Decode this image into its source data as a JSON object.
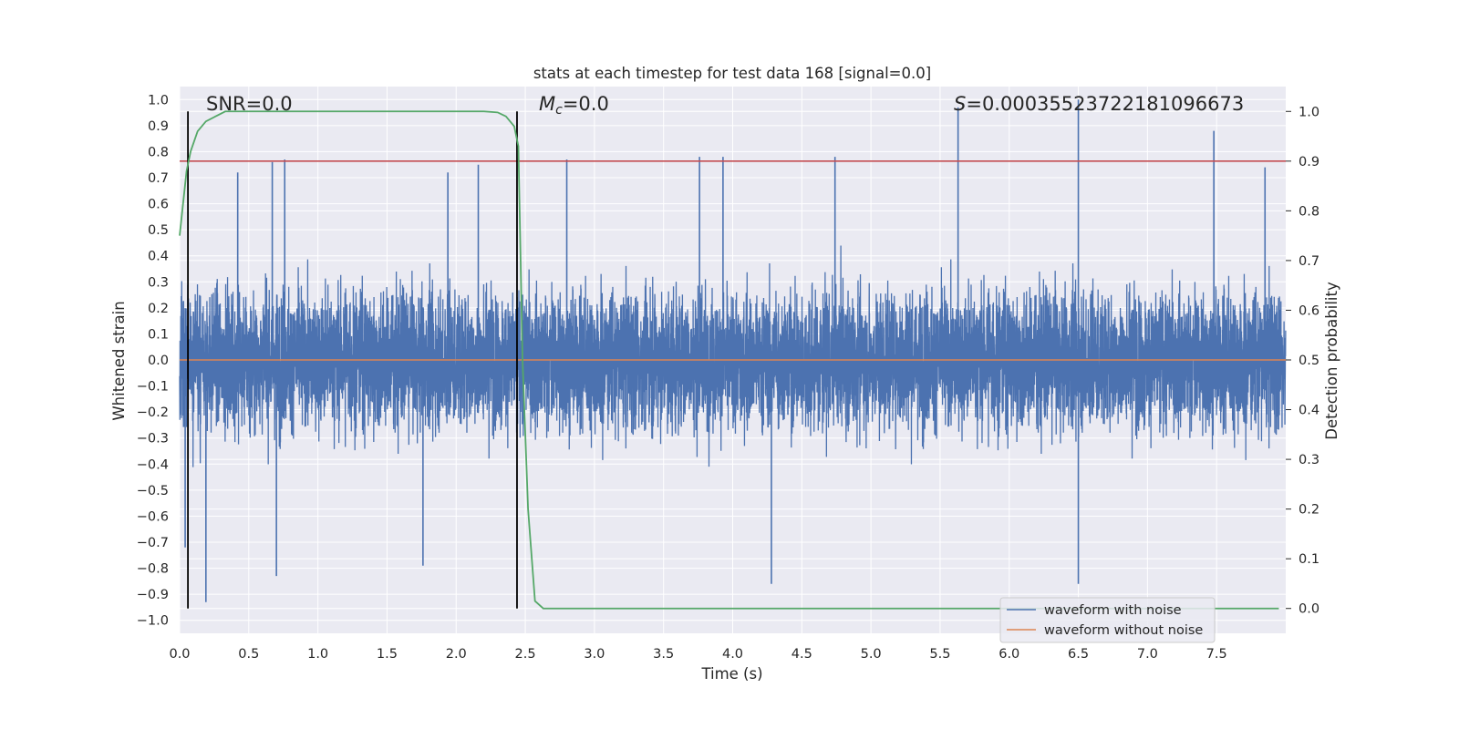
{
  "chart_data": {
    "type": "line",
    "title": "stats at each timestep for test data 168 [signal=0.0]",
    "xlabel": "Time (s)",
    "ylabel": "Whitened strain",
    "ylabel_right": "Detection probability",
    "xlim": [
      0.0,
      8.0
    ],
    "ylim": [
      -1.05,
      1.05
    ],
    "ylim_right": [
      -0.05,
      1.05
    ],
    "grid": true,
    "legend_position": "lower right",
    "x_ticks": [
      "0.0",
      "0.5",
      "1.0",
      "1.5",
      "2.0",
      "2.5",
      "3.0",
      "3.5",
      "4.0",
      "4.5",
      "5.0",
      "5.5",
      "6.0",
      "6.5",
      "7.0",
      "7.5"
    ],
    "y_ticks": [
      "1.0",
      "0.9",
      "0.8",
      "0.7",
      "0.6",
      "0.5",
      "0.4",
      "0.3",
      "0.2",
      "0.1",
      "0.0",
      "−0.1",
      "−0.2",
      "−0.3",
      "−0.4",
      "−0.5",
      "−0.6",
      "−0.7",
      "−0.8",
      "−0.9",
      "−1.0"
    ],
    "y_ticks_right": [
      "1.0",
      "0.9",
      "0.8",
      "0.7",
      "0.6",
      "0.5",
      "0.4",
      "0.3",
      "0.2",
      "0.1",
      "0.0"
    ],
    "annotations": {
      "snr": "SNR=0.0",
      "mc_symbol": "M",
      "mc_sub": "c",
      "mc_value": "=0.0",
      "s_symbol": "S",
      "s_value": "=0.00035523722181096673"
    },
    "series": [
      {
        "name": "waveform with noise",
        "color": "#4c72b0",
        "description_values": {
          "envelope_typical": 0.55,
          "min": -0.93,
          "max": 1.0
        },
        "spikes": [
          {
            "x": 0.04,
            "y": -0.72
          },
          {
            "x": 0.19,
            "y": -0.93
          },
          {
            "x": 0.42,
            "y": 0.72
          },
          {
            "x": 0.67,
            "y": 0.76
          },
          {
            "x": 0.7,
            "y": -0.83
          },
          {
            "x": 0.76,
            "y": 0.77
          },
          {
            "x": 1.76,
            "y": -0.79
          },
          {
            "x": 1.94,
            "y": 0.72
          },
          {
            "x": 2.16,
            "y": 0.75
          },
          {
            "x": 2.8,
            "y": 0.77
          },
          {
            "x": 3.76,
            "y": 0.78
          },
          {
            "x": 3.93,
            "y": 0.78
          },
          {
            "x": 4.28,
            "y": -0.86
          },
          {
            "x": 4.74,
            "y": 0.78
          },
          {
            "x": 5.63,
            "y": 0.97
          },
          {
            "x": 6.5,
            "y": 1.0
          },
          {
            "x": 6.5,
            "y": -0.86
          },
          {
            "x": 7.48,
            "y": 0.88
          },
          {
            "x": 7.85,
            "y": 0.74
          }
        ]
      },
      {
        "name": "waveform without noise",
        "color": "#dd8452",
        "x": [
          0.0,
          8.0
        ],
        "y": [
          0.0,
          0.0
        ]
      },
      {
        "name": "",
        "color": "#55a868",
        "axis": "right",
        "x": [
          0.0,
          0.05,
          0.08,
          0.13,
          0.19,
          0.26,
          0.33,
          0.42,
          0.6,
          1.0,
          1.5,
          2.0,
          2.2,
          2.3,
          2.36,
          2.42,
          2.45,
          2.48,
          2.52,
          2.57,
          2.63,
          2.7,
          3.0,
          4.0,
          5.0,
          6.0,
          7.0,
          7.95
        ],
        "y": [
          0.75,
          0.88,
          0.92,
          0.96,
          0.98,
          0.99,
          1.0,
          1.0,
          1.0,
          1.0,
          1.0,
          1.0,
          1.0,
          0.998,
          0.99,
          0.97,
          0.93,
          0.5,
          0.2,
          0.015,
          0.0,
          0.0,
          0.0,
          0.0,
          0.0,
          0.0,
          0.0,
          0.0
        ]
      }
    ],
    "threshold_line": {
      "color": "#c44e52",
      "y_right": 0.9
    },
    "vertical_markers": [
      0.06,
      2.44
    ]
  }
}
